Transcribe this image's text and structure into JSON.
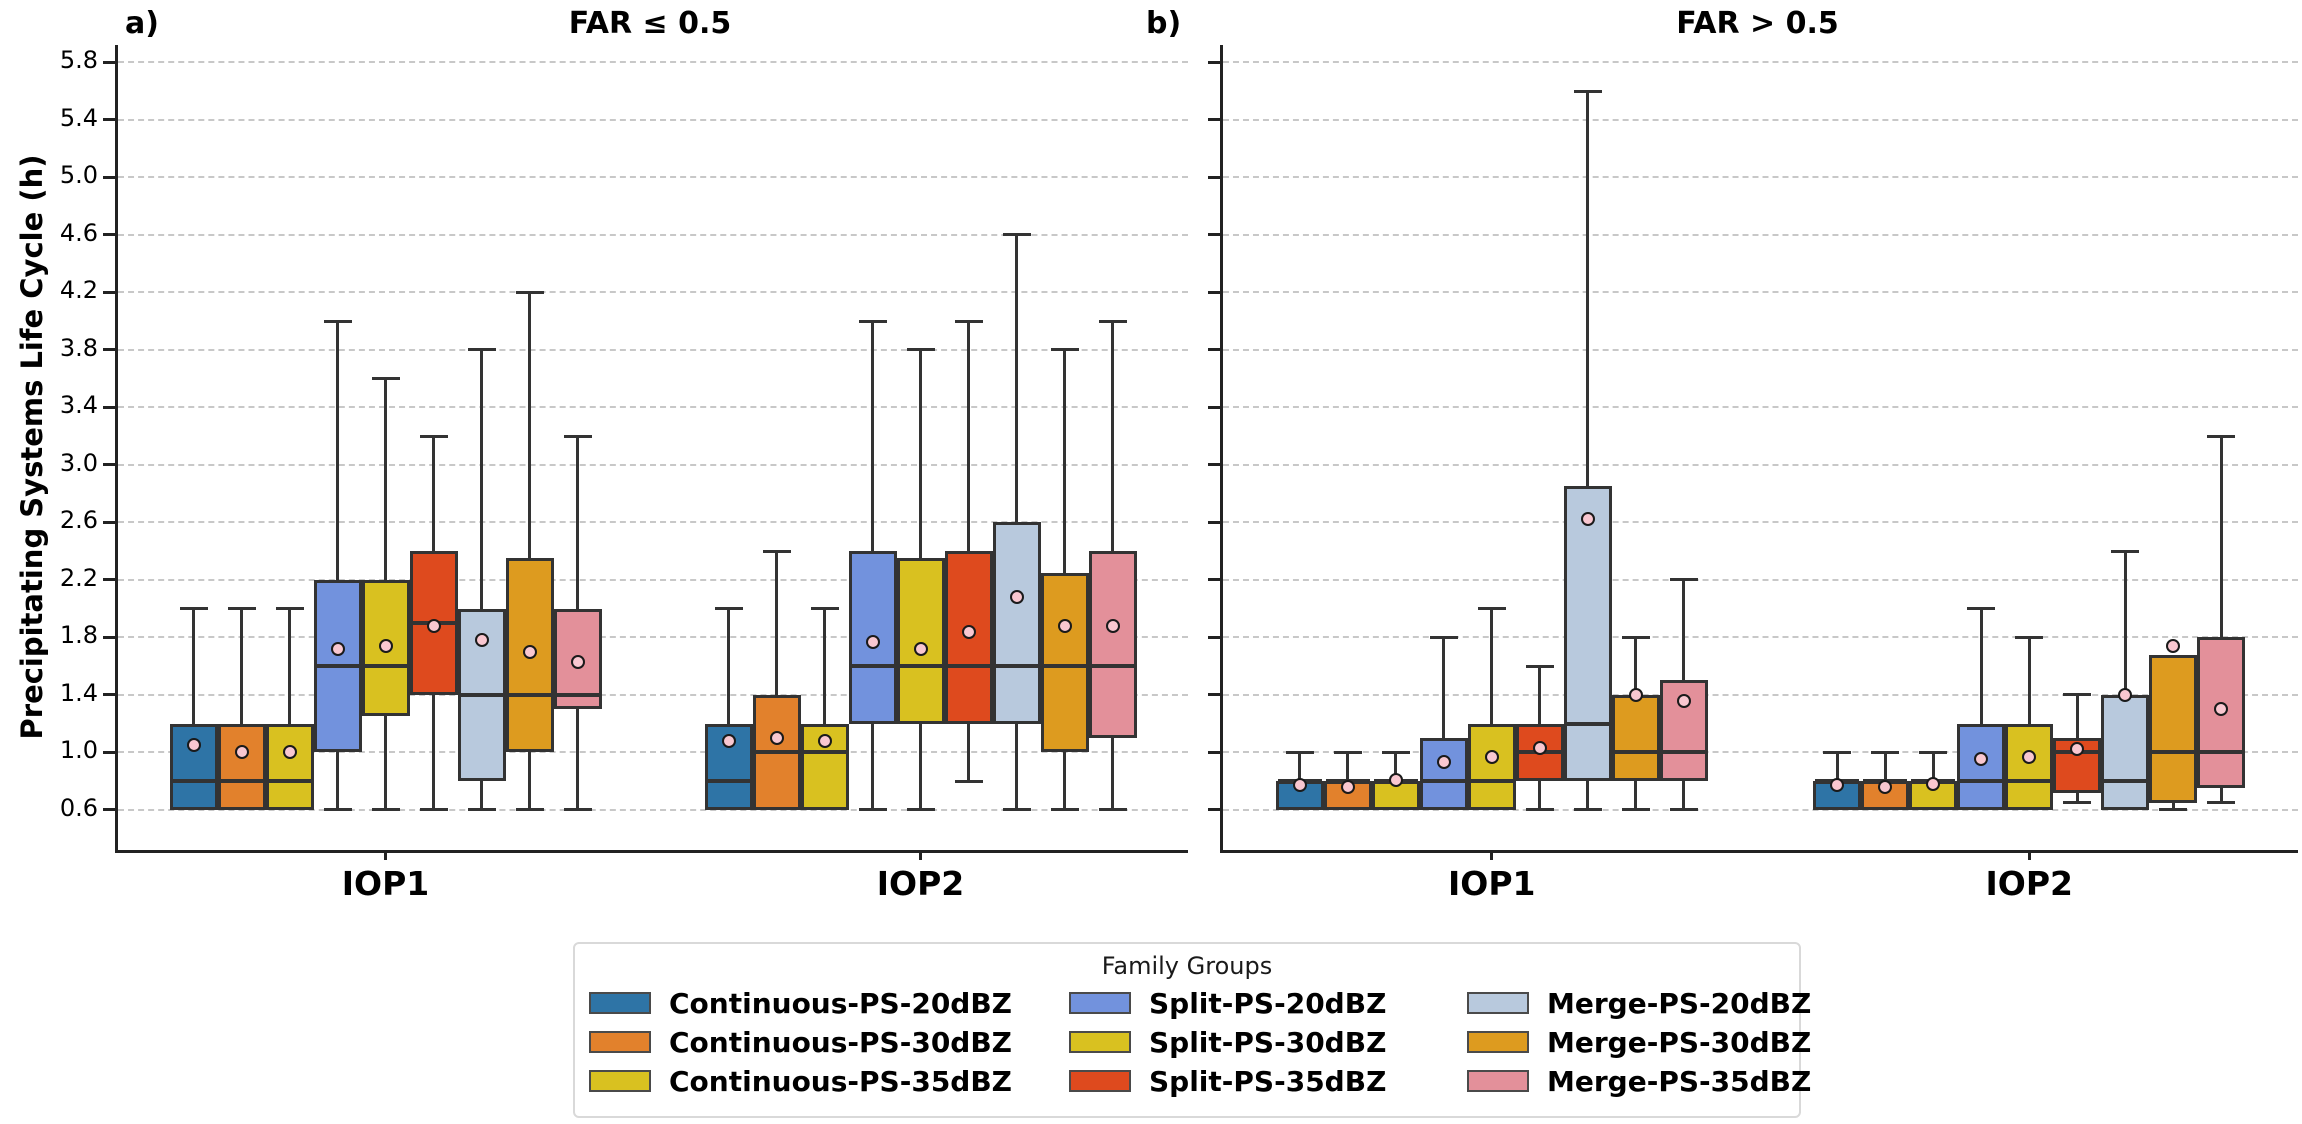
{
  "figure": {
    "ylabel": "Precipitating Systems Life Cycle (h)",
    "panel_a_label": "a)",
    "panel_b_label": "b)",
    "panel_a_title": "FAR ≤ 0.5",
    "panel_b_title": "FAR > 0.5"
  },
  "legend": {
    "title": "Family Groups",
    "entries": [
      {
        "label": "Continuous-PS-20dBZ",
        "color": "#2e74a6"
      },
      {
        "label": "Continuous-PS-30dBZ",
        "color": "#e2812c"
      },
      {
        "label": "Continuous-PS-35dBZ",
        "color": "#d9c120"
      },
      {
        "label": "Split-PS-20dBZ",
        "color": "#7292dd"
      },
      {
        "label": "Split-PS-30dBZ",
        "color": "#d9c120"
      },
      {
        "label": "Split-PS-35dBZ",
        "color": "#de4a1e"
      },
      {
        "label": "Merge-PS-20dBZ",
        "color": "#b8c9dd"
      },
      {
        "label": "Merge-PS-30dBZ",
        "color": "#dd9b1f"
      },
      {
        "label": "Merge-PS-35dBZ",
        "color": "#e3909a"
      }
    ]
  },
  "style": {
    "box_edge": "#333333",
    "mean_fill": "#f9c7d0",
    "mean_edge": "#1a1a1a",
    "grid": "#c8c8c8",
    "spine": "#222222"
  },
  "chart_data": {
    "type": "box",
    "ylabel": "Precipitating Systems Life Cycle (h)",
    "yticks": [
      0.6,
      1.0,
      1.4,
      1.8,
      2.2,
      2.6,
      3.0,
      3.4,
      3.8,
      4.2,
      4.6,
      5.0,
      5.4,
      5.8
    ],
    "ylim": [
      0.32,
      5.92
    ],
    "grid": "horizontal-dashed",
    "legend_position": "bottom-center",
    "categories": [
      "IOP1",
      "IOP2"
    ],
    "series_names": [
      "Continuous-PS-20dBZ",
      "Continuous-PS-30dBZ",
      "Continuous-PS-35dBZ",
      "Split-PS-20dBZ",
      "Split-PS-30dBZ",
      "Split-PS-35dBZ",
      "Merge-PS-20dBZ",
      "Merge-PS-30dBZ",
      "Merge-PS-35dBZ"
    ],
    "series_colors": [
      "#2e74a6",
      "#e2812c",
      "#d9c120",
      "#7292dd",
      "#d9c120",
      "#de4a1e",
      "#b8c9dd",
      "#dd9b1f",
      "#e3909a"
    ],
    "panels": [
      {
        "label": "a)",
        "title": "FAR ≤ 0.5",
        "boxes": {
          "IOP1": [
            {
              "lo": 0.6,
              "q1": 0.6,
              "med": 0.8,
              "q3": 1.2,
              "hi": 2.0,
              "mean": 1.05
            },
            {
              "lo": 0.6,
              "q1": 0.6,
              "med": 0.8,
              "q3": 1.2,
              "hi": 2.0,
              "mean": 1.0
            },
            {
              "lo": 0.6,
              "q1": 0.6,
              "med": 0.8,
              "q3": 1.2,
              "hi": 2.0,
              "mean": 1.0
            },
            {
              "lo": 0.6,
              "q1": 1.0,
              "med": 1.6,
              "q3": 2.2,
              "hi": 4.0,
              "mean": 1.72
            },
            {
              "lo": 0.6,
              "q1": 1.25,
              "med": 1.6,
              "q3": 2.2,
              "hi": 3.6,
              "mean": 1.74
            },
            {
              "lo": 0.6,
              "q1": 1.4,
              "med": 1.9,
              "q3": 2.4,
              "hi": 3.2,
              "mean": 1.88
            },
            {
              "lo": 0.6,
              "q1": 0.8,
              "med": 1.4,
              "q3": 2.0,
              "hi": 3.8,
              "mean": 1.78
            },
            {
              "lo": 0.6,
              "q1": 1.0,
              "med": 1.4,
              "q3": 2.35,
              "hi": 4.2,
              "mean": 1.7
            },
            {
              "lo": 0.6,
              "q1": 1.3,
              "med": 1.4,
              "q3": 2.0,
              "hi": 3.2,
              "mean": 1.63
            }
          ],
          "IOP2": [
            {
              "lo": 0.6,
              "q1": 0.6,
              "med": 0.8,
              "q3": 1.2,
              "hi": 2.0,
              "mean": 1.08
            },
            {
              "lo": 0.6,
              "q1": 0.6,
              "med": 1.0,
              "q3": 1.4,
              "hi": 2.4,
              "mean": 1.1
            },
            {
              "lo": 0.6,
              "q1": 0.6,
              "med": 1.0,
              "q3": 1.2,
              "hi": 2.0,
              "mean": 1.08
            },
            {
              "lo": 0.6,
              "q1": 1.2,
              "med": 1.6,
              "q3": 2.4,
              "hi": 4.0,
              "mean": 1.77
            },
            {
              "lo": 0.6,
              "q1": 1.2,
              "med": 1.6,
              "q3": 2.35,
              "hi": 3.8,
              "mean": 1.72
            },
            {
              "lo": 0.8,
              "q1": 1.2,
              "med": 1.6,
              "q3": 2.4,
              "hi": 4.0,
              "mean": 1.84
            },
            {
              "lo": 0.6,
              "q1": 1.2,
              "med": 1.6,
              "q3": 2.6,
              "hi": 4.6,
              "mean": 2.08
            },
            {
              "lo": 0.6,
              "q1": 1.0,
              "med": 1.6,
              "q3": 2.25,
              "hi": 3.8,
              "mean": 1.88
            },
            {
              "lo": 0.6,
              "q1": 1.1,
              "med": 1.6,
              "q3": 2.4,
              "hi": 4.0,
              "mean": 1.88
            }
          ]
        }
      },
      {
        "label": "b)",
        "title": "FAR > 0.5",
        "boxes": {
          "IOP1": [
            {
              "lo": 0.6,
              "q1": 0.6,
              "med": 0.8,
              "q3": 0.8,
              "hi": 1.0,
              "mean": 0.77
            },
            {
              "lo": 0.6,
              "q1": 0.6,
              "med": 0.8,
              "q3": 0.8,
              "hi": 1.0,
              "mean": 0.76
            },
            {
              "lo": 0.6,
              "q1": 0.6,
              "med": 0.8,
              "q3": 0.8,
              "hi": 1.0,
              "mean": 0.81
            },
            {
              "lo": 0.6,
              "q1": 0.6,
              "med": 0.8,
              "q3": 1.1,
              "hi": 1.8,
              "mean": 0.93
            },
            {
              "lo": 0.6,
              "q1": 0.6,
              "med": 0.8,
              "q3": 1.2,
              "hi": 2.0,
              "mean": 0.97
            },
            {
              "lo": 0.6,
              "q1": 0.8,
              "med": 1.0,
              "q3": 1.2,
              "hi": 1.6,
              "mean": 1.03
            },
            {
              "lo": 0.6,
              "q1": 0.8,
              "med": 1.2,
              "q3": 2.85,
              "hi": 5.6,
              "mean": 2.62
            },
            {
              "lo": 0.6,
              "q1": 0.8,
              "med": 1.0,
              "q3": 1.4,
              "hi": 1.8,
              "mean": 1.4
            },
            {
              "lo": 0.6,
              "q1": 0.8,
              "med": 1.0,
              "q3": 1.5,
              "hi": 2.2,
              "mean": 1.36
            }
          ],
          "IOP2": [
            {
              "lo": 0.6,
              "q1": 0.6,
              "med": 0.8,
              "q3": 0.8,
              "hi": 1.0,
              "mean": 0.77
            },
            {
              "lo": 0.6,
              "q1": 0.6,
              "med": 0.8,
              "q3": 0.8,
              "hi": 1.0,
              "mean": 0.76
            },
            {
              "lo": 0.6,
              "q1": 0.6,
              "med": 0.8,
              "q3": 0.8,
              "hi": 1.0,
              "mean": 0.78
            },
            {
              "lo": 0.6,
              "q1": 0.6,
              "med": 0.8,
              "q3": 1.2,
              "hi": 2.0,
              "mean": 0.95
            },
            {
              "lo": 0.6,
              "q1": 0.6,
              "med": 0.8,
              "q3": 1.2,
              "hi": 1.8,
              "mean": 0.97
            },
            {
              "lo": 0.65,
              "q1": 0.72,
              "med": 1.0,
              "q3": 1.1,
              "hi": 1.4,
              "mean": 1.02
            },
            {
              "lo": 0.6,
              "q1": 0.6,
              "med": 0.8,
              "q3": 1.4,
              "hi": 2.4,
              "mean": 1.4
            },
            {
              "lo": 0.6,
              "q1": 0.65,
              "med": 1.0,
              "q3": 1.68,
              "hi": 1.68,
              "mean": 1.74
            },
            {
              "lo": 0.65,
              "q1": 0.75,
              "med": 1.0,
              "q3": 1.8,
              "hi": 3.2,
              "mean": 1.3
            }
          ]
        }
      }
    ]
  }
}
